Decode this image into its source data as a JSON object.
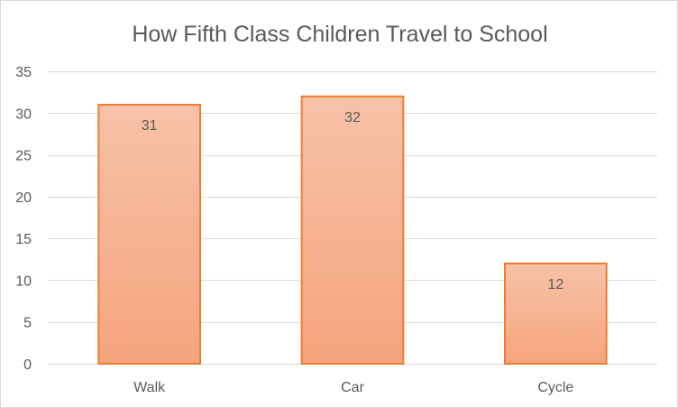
{
  "chart_data": {
    "type": "bar",
    "title": "How Fifth Class Children Travel to School",
    "xlabel": "",
    "ylabel": "",
    "categories": [
      "Walk",
      "Car",
      "Cycle"
    ],
    "values": [
      31,
      32,
      12
    ],
    "data_labels": [
      "31",
      "32",
      "12"
    ],
    "ylim": [
      0,
      35
    ],
    "y_ticks": [
      0,
      5,
      10,
      15,
      20,
      25,
      30,
      35
    ],
    "y_tick_labels": [
      "0",
      "5",
      "10",
      "15",
      "20",
      "25",
      "30",
      "35"
    ],
    "grid": true,
    "legend": "none",
    "colors": {
      "bar_top": "#f7c2a8",
      "bar_bottom": "#f5a47d",
      "bar_border": "#ed7d31",
      "grid": "#d9d9d9",
      "text": "#595959"
    }
  }
}
